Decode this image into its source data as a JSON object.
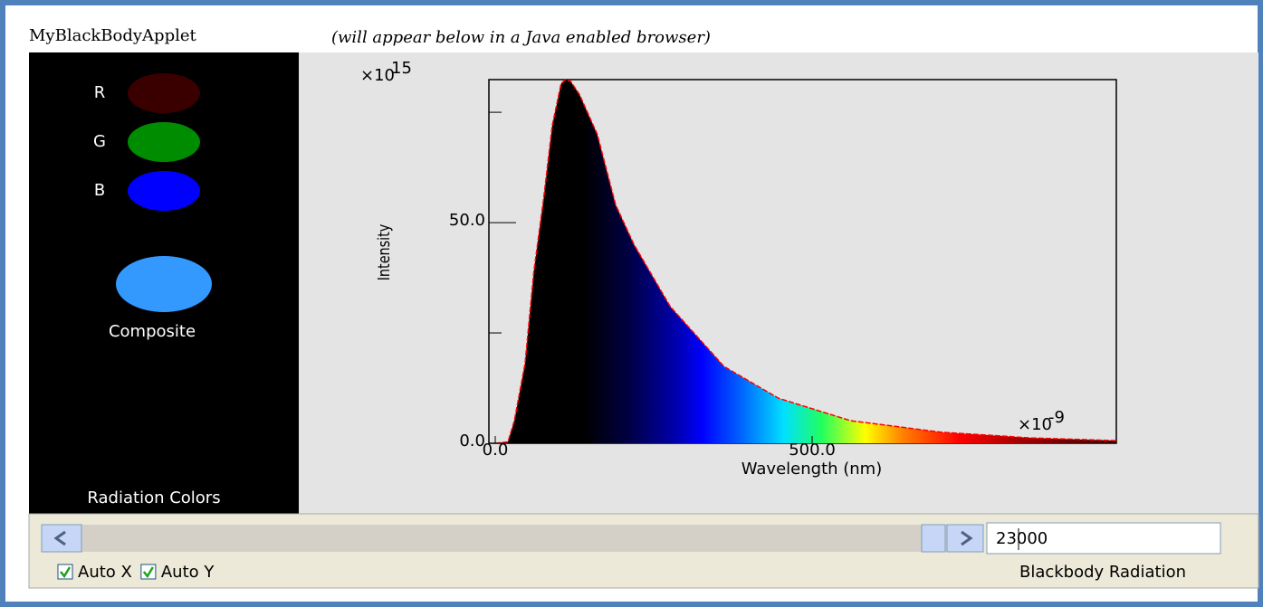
{
  "title": "MyBlackBodyApplet",
  "subtitle": "(will appear below in a Java enabled browser)",
  "colors_panel": {
    "channels": [
      {
        "label": "R",
        "color": "#3a0000"
      },
      {
        "label": "G",
        "color": "#008c00"
      },
      {
        "label": "B",
        "color": "#0000ff"
      }
    ],
    "composite_label": "Composite",
    "composite_color": "#3399ff",
    "caption": "Radiation Colors"
  },
  "plot": {
    "type": "line",
    "x_label": "Wavelength (nm)",
    "y_label": "Intensity",
    "x_multiplier": "×10",
    "x_exponent": "-9",
    "y_multiplier": "×10",
    "y_exponent": "15",
    "x": [
      0,
      20,
      30,
      47,
      61,
      76,
      90,
      104,
      111,
      119,
      133,
      161,
      190,
      219,
      276,
      361,
      447,
      561,
      704,
      847,
      980
    ],
    "values": [
      0,
      0.3,
      5,
      18,
      39,
      55,
      72,
      81.5,
      82.4,
      82,
      79,
      70,
      54,
      45,
      31,
      17.4,
      10.2,
      5.1,
      2.5,
      1.2,
      0.6
    ],
    "color": "#ff0000",
    "xlim": [
      -10,
      980
    ],
    "ylim": [
      0,
      82.4
    ],
    "xticks": [
      {
        "value": 0,
        "label": "0.0"
      },
      {
        "value": 500,
        "label": "500.0"
      }
    ],
    "yticks": [
      {
        "value": 0,
        "label": "0.0"
      },
      {
        "value": 50,
        "label": "50.0"
      }
    ],
    "yminor": [
      25,
      75
    ]
  },
  "controls": {
    "field": "23000",
    "checkboxes": [
      {
        "label": "Auto X",
        "checked": true
      },
      {
        "label": "Auto Y",
        "checked": true
      }
    ],
    "status": "Blackbody Radiation"
  }
}
